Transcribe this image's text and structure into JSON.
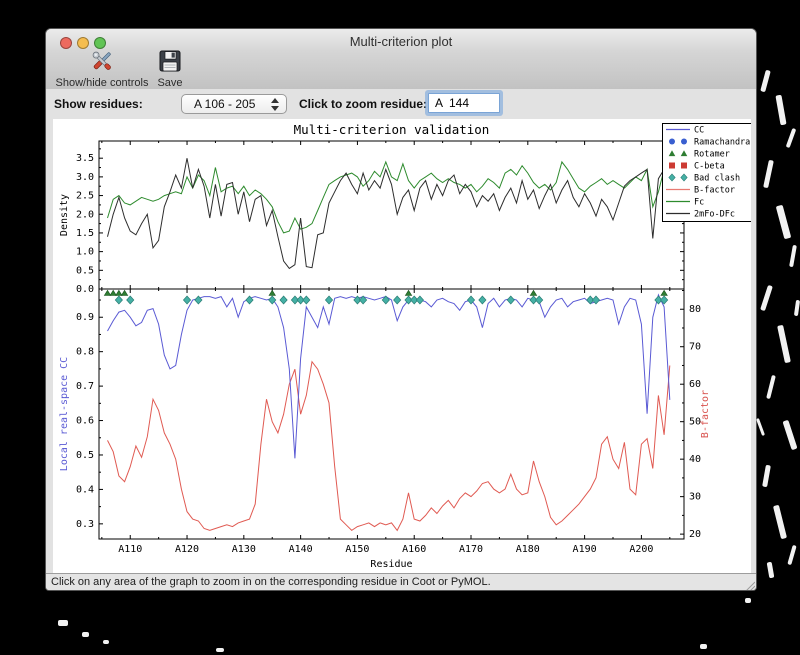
{
  "window": {
    "title": "Multi-criterion plot"
  },
  "traffic_lights": {
    "close": "#ed6a5f",
    "minimize": "#f5bd4f",
    "zoom": "#61c455"
  },
  "toolbar": {
    "show_hide_label": "Show/hide controls",
    "save_label": "Save"
  },
  "controls": {
    "show_residues_label": "Show residues:",
    "residue_range_value": "A 106 - 205",
    "zoom_residue_label": "Click to zoom residue:",
    "zoom_residue_value": "A  144"
  },
  "status_bar": {
    "text": "Click on any area of the graph to zoom in on the corresponding residue in Coot or PyMOL."
  },
  "chart_data": {
    "type": "line",
    "title": "Multi-criterion validation",
    "xlabel": "Residue",
    "chain": "A",
    "residue_start": 106,
    "residue_end": 205,
    "xlim": [
      104.5,
      207.5
    ],
    "x_major_ticks": [
      110,
      120,
      130,
      140,
      150,
      160,
      170,
      180,
      190,
      200
    ],
    "x_tick_labels": [
      "A110",
      "A120",
      "A130",
      "A140",
      "A150",
      "A160",
      "A170",
      "A180",
      "A190",
      "A200"
    ],
    "x_minor_ticks": [
      105,
      115,
      125,
      135,
      145,
      155,
      165,
      175,
      185,
      195,
      205
    ],
    "legend": {
      "position": "upper right",
      "entries": [
        {
          "label": "CC",
          "symbol": "line",
          "color": "#5a5ad4"
        },
        {
          "label": "Ramachandran",
          "symbol": "circle",
          "color": "#3a5fd0"
        },
        {
          "label": "Rotamer",
          "symbol": "triangle",
          "color": "#2e7d32"
        },
        {
          "label": "C-beta",
          "symbol": "square",
          "color": "#cc3b33"
        },
        {
          "label": "Bad clash",
          "symbol": "diamond",
          "color": "#45b0a5"
        },
        {
          "label": "B-factor",
          "symbol": "line",
          "color": "#e87a72"
        },
        {
          "label": "Fc",
          "symbol": "line",
          "color": "#2e8b2e"
        },
        {
          "label": "2mFo-DFc",
          "symbol": "line",
          "color": "#2d2d2d"
        }
      ]
    },
    "top_plot": {
      "ylabel": "Density",
      "ylim": [
        0,
        3.96
      ],
      "yticks": [
        0.0,
        0.5,
        1.0,
        1.5,
        2.0,
        2.5,
        3.0,
        3.5
      ],
      "series": [
        {
          "name": "Fc",
          "color": "#2e8b2e",
          "values": [
            1.9,
            2.4,
            2.5,
            2.3,
            2.25,
            2.35,
            2.45,
            2.4,
            2.35,
            2.4,
            2.5,
            2.55,
            2.6,
            2.55,
            3.0,
            2.7,
            3.05,
            2.9,
            2.5,
            3.25,
            2.6,
            2.7,
            2.75,
            2.55,
            2.75,
            2.5,
            2.65,
            2.55,
            2.4,
            2.2,
            1.8,
            1.5,
            1.55,
            1.9,
            1.6,
            1.65,
            1.75,
            2.1,
            2.45,
            2.8,
            2.9,
            3.0,
            3.05,
            3.1,
            3.0,
            2.75,
            2.9,
            3.15,
            3.0,
            3.4,
            3.0,
            2.9,
            3.35,
            2.9,
            2.7,
            2.9,
            3.0,
            3.1,
            2.95,
            2.85,
            2.95,
            2.85,
            2.8,
            2.7,
            2.8,
            2.6,
            2.75,
            2.95,
            2.85,
            2.7,
            3.1,
            3.2,
            3.05,
            3.3,
            3.1,
            2.85,
            2.7,
            2.8,
            2.65,
            2.85,
            3.4,
            3.2,
            2.95,
            2.7,
            2.6,
            2.75,
            2.85,
            2.95,
            2.8,
            2.9,
            2.8,
            2.7,
            2.85,
            3.0,
            2.9,
            3.2,
            2.2,
            2.6,
            3.2,
            2.65
          ]
        },
        {
          "name": "2mFo-DFc",
          "color": "#2d2d2d",
          "values": [
            1.4,
            2.0,
            2.45,
            1.9,
            1.55,
            1.45,
            1.75,
            2.0,
            1.1,
            1.3,
            2.2,
            2.6,
            3.05,
            2.7,
            3.5,
            2.7,
            3.2,
            2.75,
            1.9,
            2.8,
            1.95,
            2.8,
            2.85,
            2.0,
            2.6,
            1.8,
            2.4,
            2.5,
            1.7,
            2.1,
            1.4,
            0.75,
            0.55,
            0.65,
            1.9,
            0.6,
            0.57,
            1.45,
            1.5,
            2.3,
            2.6,
            2.9,
            3.1,
            2.8,
            2.55,
            3.1,
            2.65,
            2.9,
            2.7,
            3.2,
            2.8,
            2.0,
            2.45,
            2.65,
            2.1,
            2.7,
            2.9,
            2.4,
            2.8,
            2.5,
            2.9,
            3.05,
            2.55,
            2.8,
            2.6,
            2.2,
            2.5,
            2.35,
            2.55,
            2.1,
            2.45,
            2.7,
            2.3,
            2.9,
            2.4,
            2.65,
            2.15,
            2.5,
            2.8,
            2.3,
            2.65,
            2.9,
            2.45,
            2.2,
            2.55,
            2.3,
            1.95,
            2.4,
            2.2,
            1.85,
            2.3,
            2.75,
            2.9,
            3.0,
            3.1,
            3.2,
            1.35,
            2.95,
            3.2,
            2.65
          ]
        }
      ]
    },
    "bottom_plot": {
      "ylabel_left": "Local real-space CC",
      "ylabel_left_color": "#5a5ad4",
      "ylim_left": [
        0.256,
        0.982
      ],
      "yticks_left": [
        0.3,
        0.4,
        0.5,
        0.6,
        0.7,
        0.8,
        0.9
      ],
      "ylabel_right": "B-factor",
      "ylabel_right_color": "#d9534f",
      "ylim_right": [
        18.7,
        85.4
      ],
      "yticks_right": [
        20,
        30,
        40,
        50,
        60,
        70,
        80
      ],
      "series": [
        {
          "name": "CC",
          "axis": "left",
          "color": "#5a5ad4",
          "values": [
            0.86,
            0.89,
            0.915,
            0.92,
            0.9,
            0.875,
            0.885,
            0.92,
            0.925,
            0.88,
            0.79,
            0.75,
            0.76,
            0.85,
            0.92,
            0.95,
            0.955,
            0.96,
            0.96,
            0.955,
            0.96,
            0.93,
            0.955,
            0.9,
            0.945,
            0.955,
            0.96,
            0.955,
            0.95,
            0.955,
            0.93,
            0.87,
            0.75,
            0.49,
            0.78,
            0.93,
            0.9,
            0.87,
            0.93,
            0.88,
            0.955,
            0.96,
            0.955,
            0.96,
            0.955,
            0.96,
            0.955,
            0.95,
            0.955,
            0.96,
            0.95,
            0.89,
            0.93,
            0.95,
            0.955,
            0.95,
            0.945,
            0.93,
            0.95,
            0.955,
            0.945,
            0.94,
            0.92,
            0.945,
            0.95,
            0.93,
            0.87,
            0.94,
            0.955,
            0.93,
            0.95,
            0.955,
            0.95,
            0.93,
            0.955,
            0.95,
            0.945,
            0.9,
            0.93,
            0.95,
            0.955,
            0.93,
            0.945,
            0.95,
            0.955,
            0.94,
            0.945,
            0.95,
            0.955,
            0.95,
            0.88,
            0.93,
            0.955,
            0.95,
            0.88,
            0.62,
            0.9,
            0.965,
            0.93,
            0.66
          ]
        },
        {
          "name": "B-factor",
          "axis": "right",
          "color": "#e05a52",
          "values": [
            45,
            42,
            35.5,
            34,
            38,
            43.5,
            40.5,
            46,
            56,
            53,
            47,
            44,
            40,
            32,
            26,
            24,
            23.5,
            21.5,
            21,
            21.5,
            22,
            22.5,
            22,
            23,
            23.5,
            24,
            28,
            44,
            56,
            50,
            47,
            52,
            60,
            64,
            52,
            57,
            66,
            64,
            60,
            55,
            38,
            24,
            22.5,
            21,
            22,
            22.5,
            23,
            22,
            23,
            22.5,
            23,
            21,
            24,
            31,
            24,
            23.5,
            25,
            27,
            25.5,
            27.5,
            29,
            27,
            29.5,
            31,
            30,
            31.5,
            33.5,
            34,
            32,
            31,
            32,
            36,
            32,
            30.5,
            31,
            39.5,
            34,
            30,
            24.5,
            22.5,
            23.5,
            25,
            26.5,
            28,
            30,
            32,
            35,
            44,
            46,
            40,
            37.5,
            44.5,
            32,
            30.5,
            44,
            45.5,
            37.5,
            57,
            46.5,
            65
          ]
        }
      ],
      "markers": [
        {
          "name": "Rotamer",
          "symbol": "triangle",
          "color": "#2e7d32",
          "residues": [
            106,
            107,
            108,
            109,
            135,
            159,
            181,
            204
          ]
        },
        {
          "name": "Bad clash",
          "symbol": "diamond",
          "color": "#45b0a5",
          "residues": [
            108,
            110,
            120,
            122,
            131,
            135,
            137,
            139,
            140,
            141,
            145,
            150,
            151,
            155,
            157,
            159,
            160,
            161,
            170,
            172,
            177,
            181,
            182,
            191,
            192,
            203,
            204
          ]
        }
      ]
    }
  }
}
